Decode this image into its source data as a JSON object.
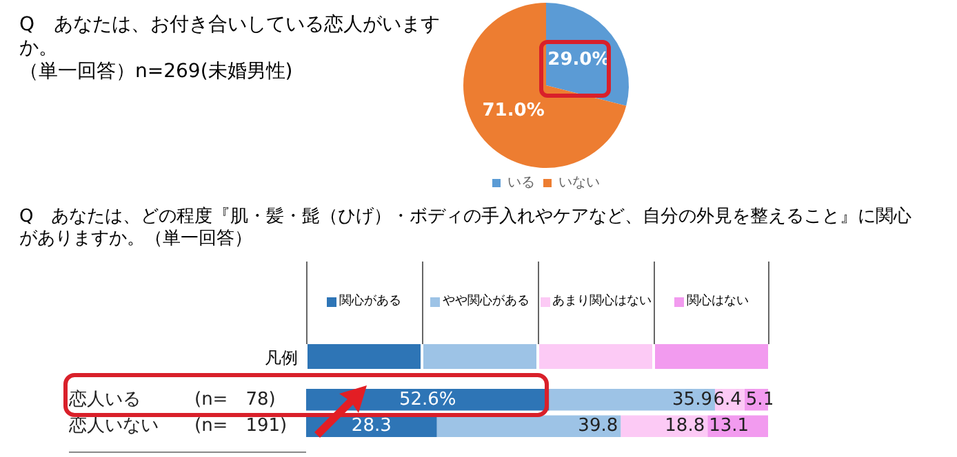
{
  "chart_data": [
    {
      "type": "pie",
      "title": "Q　あなたは、お付き合いしている恋人がいますか。",
      "subtitle": "（単一回答）n=269(未婚男性)",
      "categories": [
        "いる",
        "いない"
      ],
      "values": [
        29.0,
        71.0
      ],
      "colors": [
        "#5b9bd5",
        "#ed7d31"
      ],
      "value_labels": [
        "29.0%",
        "71.0%"
      ],
      "legend": "bottom"
    },
    {
      "type": "bar",
      "title": "Q　あなたは、どの程度『肌・髪・髭（ひげ）・ボディの手入れやケアなど、自分の外見を整えること』に関心がありますか。（単一回答）",
      "orientation": "horizontal",
      "stacked": true,
      "categories": [
        "恋人いる　　　(n=　78)",
        "恋人いない　　(n=　191)"
      ],
      "xlim": [
        0,
        100
      ],
      "tick_labels": "y",
      "legend": "top",
      "legend_title": "凡例",
      "series": [
        {
          "name": "関心がある",
          "color": "#2e75b6",
          "values": [
            52.6,
            28.3
          ],
          "value_labels": [
            "52.6%",
            "28.3"
          ]
        },
        {
          "name": "やや関心がある",
          "color": "#9dc3e6",
          "values": [
            35.9,
            39.8
          ],
          "value_labels": [
            "35.9",
            "39.8"
          ]
        },
        {
          "name": "あまり関心はない",
          "color": "#fccaf5",
          "values": [
            6.4,
            18.8
          ],
          "value_labels": [
            "6.4",
            "18.8"
          ]
        },
        {
          "name": "関心はない",
          "color": "#f29bef",
          "values": [
            5.1,
            13.1
          ],
          "value_labels": [
            "5.1",
            "13.1"
          ]
        }
      ]
    }
  ]
}
